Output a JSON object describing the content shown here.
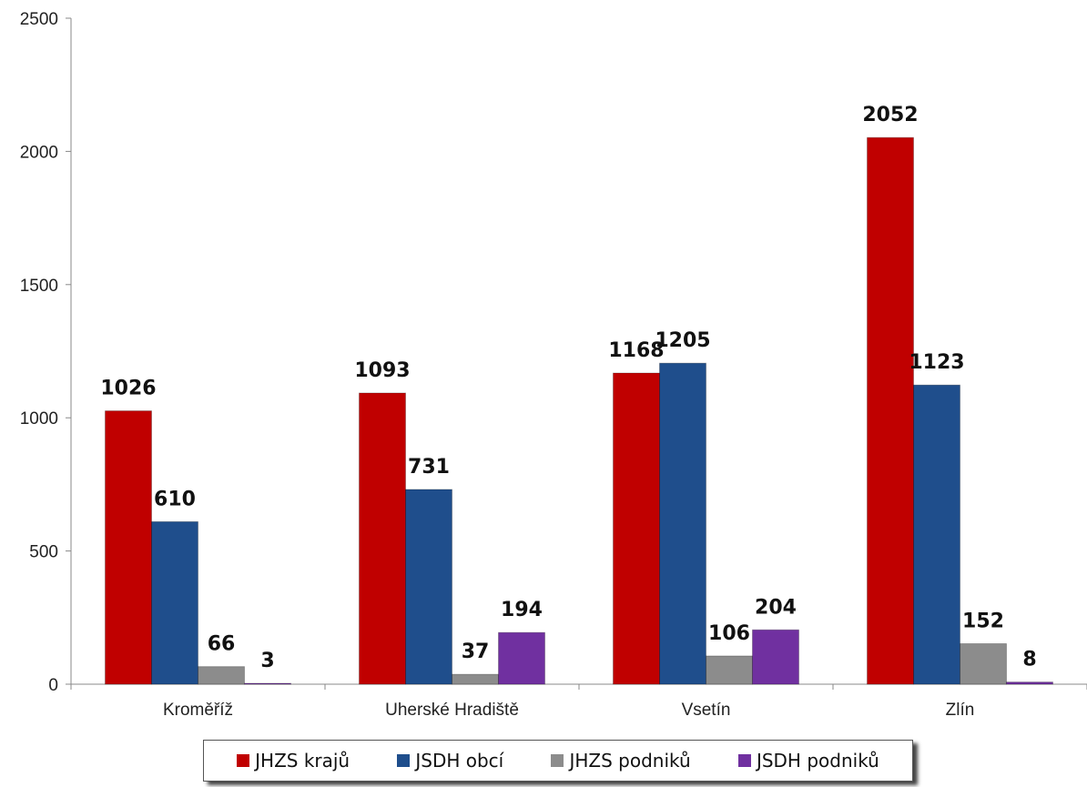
{
  "colors": {
    "JHZS krajů": "#c00000",
    "JSDH obcí": "#1f4e8c",
    "JHZS podniků": "#8c8c8c",
    "JSDH podniků": "#7030a0"
  },
  "chart_data": {
    "type": "bar",
    "categories": [
      "Kroměříž",
      "Uherské Hradiště",
      "Vsetín",
      "Zlín"
    ],
    "series": [
      {
        "name": "JHZS krajů",
        "values": [
          1026,
          1093,
          1168,
          2052
        ]
      },
      {
        "name": "JSDH obcí",
        "values": [
          610,
          731,
          1205,
          1123
        ]
      },
      {
        "name": "JHZS podniků",
        "values": [
          66,
          37,
          106,
          152
        ]
      },
      {
        "name": "JSDH podniků",
        "values": [
          3,
          194,
          204,
          8
        ]
      }
    ],
    "yticks": [
      0,
      500,
      1000,
      1500,
      2000,
      2500
    ],
    "ylim": [
      0,
      2500
    ],
    "grid": false,
    "legend_position": "bottom"
  }
}
